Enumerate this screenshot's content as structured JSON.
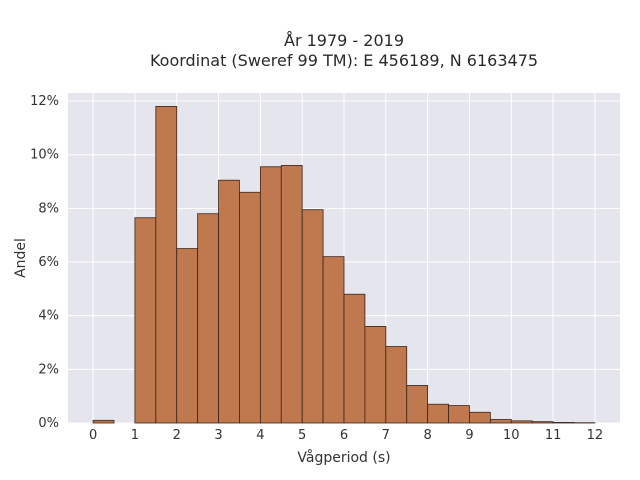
{
  "chart_data": {
    "type": "bar",
    "title_lines": [
      "År 1979 - 2019",
      "Koordinat (Sweref 99 TM): E 456189, N 6163475"
    ],
    "xlabel": "Vågperiod (s)",
    "ylabel": "Andel",
    "xlim": [
      -0.6,
      12.6
    ],
    "ylim": [
      0,
      12.3
    ],
    "x_ticks": [
      0,
      1,
      2,
      3,
      4,
      5,
      6,
      7,
      8,
      9,
      10,
      11,
      12
    ],
    "y_ticks": [
      0,
      2,
      4,
      6,
      8,
      10,
      12
    ],
    "y_tick_suffix": "%",
    "bin_width": 0.5,
    "bins": [
      {
        "x0": 0.0,
        "value": 0.1
      },
      {
        "x0": 1.0,
        "value": 7.65
      },
      {
        "x0": 1.5,
        "value": 11.8
      },
      {
        "x0": 2.0,
        "value": 6.5
      },
      {
        "x0": 2.5,
        "value": 7.8
      },
      {
        "x0": 3.0,
        "value": 9.05
      },
      {
        "x0": 3.5,
        "value": 8.6
      },
      {
        "x0": 4.0,
        "value": 9.55
      },
      {
        "x0": 4.5,
        "value": 9.6
      },
      {
        "x0": 5.0,
        "value": 7.95
      },
      {
        "x0": 5.5,
        "value": 6.2
      },
      {
        "x0": 6.0,
        "value": 4.8
      },
      {
        "x0": 6.5,
        "value": 3.6
      },
      {
        "x0": 7.0,
        "value": 2.85
      },
      {
        "x0": 7.5,
        "value": 1.4
      },
      {
        "x0": 8.0,
        "value": 0.7
      },
      {
        "x0": 8.5,
        "value": 0.65
      },
      {
        "x0": 9.0,
        "value": 0.4
      },
      {
        "x0": 9.5,
        "value": 0.13
      },
      {
        "x0": 10.0,
        "value": 0.08
      },
      {
        "x0": 10.5,
        "value": 0.05
      },
      {
        "x0": 11.0,
        "value": 0.02
      },
      {
        "x0": 11.5,
        "value": 0.01
      }
    ],
    "grid": true,
    "colors": {
      "bar": "#c0784f",
      "bar_edge": "#3a2418",
      "plot_bg": "#e5e5ee",
      "grid": "#ffffff"
    }
  }
}
